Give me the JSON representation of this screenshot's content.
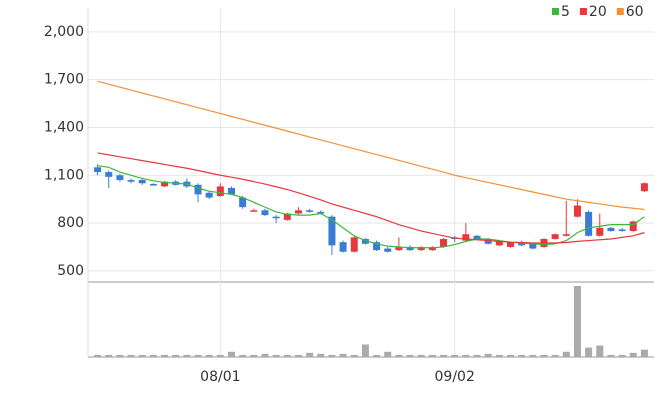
{
  "chart_data": {
    "type": "candlestick",
    "categories": [
      null,
      null,
      null,
      null,
      null,
      null,
      null,
      null,
      null,
      null,
      null,
      "08/01",
      null,
      null,
      null,
      null,
      null,
      null,
      null,
      null,
      null,
      null,
      null,
      null,
      null,
      null,
      null,
      null,
      null,
      null,
      null,
      null,
      "09/02",
      null,
      null,
      null,
      null,
      null,
      null,
      null,
      null,
      null,
      null,
      null,
      null,
      null,
      null,
      null,
      null,
      null
    ],
    "open": [
      1150,
      1120,
      1100,
      1070,
      1070,
      1045,
      1030,
      1060,
      1060,
      1040,
      990,
      970,
      1020,
      960,
      880,
      880,
      840,
      820,
      860,
      880,
      870,
      840,
      680,
      620,
      700,
      680,
      640,
      630,
      650,
      630,
      630,
      650,
      710,
      690,
      720,
      700,
      660,
      650,
      680,
      670,
      650,
      700,
      720,
      840,
      870,
      720,
      770,
      760,
      750,
      1000
    ],
    "high": [
      1170,
      1130,
      1110,
      1080,
      1080,
      1050,
      1065,
      1070,
      1080,
      1050,
      1000,
      1050,
      1030,
      970,
      890,
      890,
      850,
      865,
      900,
      890,
      880,
      850,
      690,
      715,
      705,
      690,
      650,
      710,
      660,
      655,
      655,
      705,
      720,
      800,
      725,
      705,
      695,
      685,
      690,
      675,
      705,
      735,
      940,
      950,
      880,
      860,
      775,
      770,
      815,
      1055
    ],
    "low": [
      1100,
      1020,
      1060,
      1050,
      1040,
      1035,
      1025,
      1035,
      1020,
      930,
      950,
      965,
      975,
      890,
      875,
      845,
      800,
      815,
      855,
      865,
      855,
      600,
      615,
      615,
      665,
      625,
      615,
      625,
      625,
      625,
      625,
      645,
      680,
      685,
      695,
      665,
      655,
      645,
      655,
      635,
      645,
      695,
      715,
      835,
      715,
      715,
      745,
      745,
      745,
      995
    ],
    "close": [
      1120,
      1090,
      1070,
      1060,
      1050,
      1040,
      1060,
      1040,
      1030,
      980,
      960,
      1030,
      980,
      900,
      880,
      850,
      830,
      860,
      880,
      870,
      860,
      660,
      620,
      710,
      670,
      630,
      620,
      650,
      630,
      650,
      650,
      700,
      700,
      730,
      700,
      670,
      690,
      680,
      660,
      640,
      700,
      730,
      730,
      910,
      720,
      770,
      750,
      750,
      810,
      1050
    ],
    "volume": [
      2,
      2,
      2,
      2,
      2,
      2,
      2,
      2,
      2,
      2,
      2,
      2,
      5,
      2,
      2,
      3,
      2,
      2,
      2,
      4,
      3,
      2,
      3,
      2,
      12,
      2,
      5,
      2,
      2,
      2,
      2,
      2,
      2,
      2,
      2,
      3,
      2,
      2,
      2,
      2,
      2,
      2,
      5,
      68,
      9,
      11,
      2,
      2,
      4,
      7
    ],
    "series": [
      {
        "name": "5",
        "color": "#3cb83c",
        "values": [
          1160,
          1150,
          1120,
          1100,
          1080,
          1065,
          1055,
          1050,
          1045,
          1020,
          1000,
          990,
          980,
          960,
          930,
          900,
          870,
          855,
          850,
          850,
          860,
          820,
          770,
          720,
          690,
          670,
          655,
          650,
          645,
          645,
          645,
          650,
          665,
          685,
          700,
          700,
          690,
          680,
          675,
          670,
          665,
          670,
          690,
          740,
          770,
          780,
          790,
          790,
          790,
          840
        ]
      },
      {
        "name": "20",
        "color": "#e8383d",
        "values": [
          1240,
          1228,
          1216,
          1204,
          1192,
          1180,
          1168,
          1156,
          1144,
          1130,
          1115,
          1100,
          1088,
          1075,
          1060,
          1045,
          1028,
          1010,
          990,
          968,
          945,
          920,
          900,
          880,
          860,
          840,
          815,
          790,
          770,
          750,
          735,
          720,
          705,
          700,
          695,
          690,
          685,
          680,
          678,
          675,
          675,
          675,
          678,
          685,
          690,
          695,
          700,
          710,
          720,
          740
        ]
      },
      {
        "name": "60",
        "color": "#f0913c",
        "values": [
          1690,
          1672,
          1653,
          1635,
          1616,
          1598,
          1580,
          1561,
          1543,
          1524,
          1506,
          1488,
          1469,
          1451,
          1432,
          1414,
          1396,
          1377,
          1359,
          1340,
          1322,
          1304,
          1285,
          1267,
          1248,
          1230,
          1212,
          1193,
          1175,
          1156,
          1138,
          1120,
          1100,
          1085,
          1070,
          1055,
          1040,
          1025,
          1010,
          995,
          980,
          965,
          950,
          940,
          930,
          920,
          910,
          900,
          893,
          885
        ]
      }
    ],
    "up_color": "#e8383d",
    "down_color": "#3a7bd5",
    "volume_color": "#aaaaaa",
    "ylim": [
      430,
      2150
    ],
    "yticks": [
      500,
      800,
      {
        "value": 1100,
        "label": "1,100"
      },
      {
        "value": 1400,
        "label": "1,400"
      },
      {
        "value": 1700,
        "label": "1,700"
      },
      {
        "value": 2000,
        "label": "2,000"
      }
    ],
    "grid": true
  }
}
